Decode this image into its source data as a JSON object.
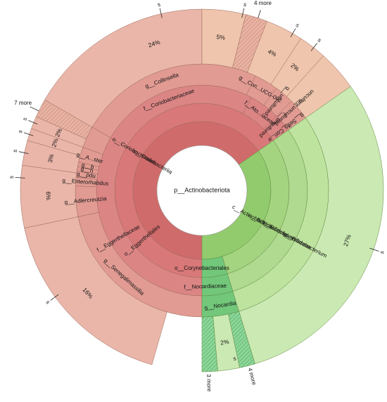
{
  "center_label": "p__Actinobacteriota",
  "colors": {
    "red_core": "#d06b6b",
    "red_class": "#d87878",
    "red_order": "#db8585",
    "red_family": "#e19b93",
    "red_genus": "#e6aa9e",
    "red_species": "#eab6a9",
    "peach_species": "#efc5ad",
    "green_class": "#92cb6e",
    "green_order": "#a4d47f",
    "green_family": "#b0da8f",
    "green_genus": "#bee39f",
    "green_species": "#cbe9b3",
    "nocardia_green": "#72c77a",
    "hatch_red": "#d8a090",
    "hatch_green": "#66bb77"
  },
  "class_labels": {
    "coriobacteriia": "c__Coriobacteriia",
    "actinobacteria": "c__Actinobacteria"
  },
  "order_labels": {
    "coriobacteriales": "o__Coriobacteriales",
    "eggerthellales": "o__Eggerthellales",
    "bifidobacteriales": "o__Bifidobacteriales",
    "corynebacteriales": "o__Corynebacteriales"
  },
  "family_labels": {
    "coriobacteriaceae": "f__Coriobacteriaceae",
    "atopobiaceae": "f__Ato...iaceae",
    "eggerthellaceae": "f__Eggerthellaceae",
    "bifidobacteriaceae": "f__Bifidobacteriaceae",
    "nocardiaceae": "f__Nocardiaceae",
    "uncultured": "f__uncultured",
    "cori_small": "f__Cori...e"
  },
  "genus_labels": {
    "collinsella": "g__Collinsella",
    "cori_ucg": "g__Cori...UCG-002",
    "uncultured_a": "g__uncultured",
    "uncultured_b": "g__uncultured",
    "senegalimassilia": "g__Senegalimassilia",
    "adlercreutzia": "g__Adlercreutzia",
    "enterorhabdus": "g__Enterorhabdus",
    "a_ster": "g__A...ster",
    "b_small": "g__b",
    "n_small": "g__n",
    "pdu_small": "g__pdu",
    "bifidobacterium": "g__Bifidobacterium",
    "nocardia": "g__Nocardia",
    "sellis": "g__Sellis"
  },
  "species_labels": {
    "s": "s",
    "pct_24": "24%",
    "pct_16": "16%",
    "pct_27": "27%",
    "pct_6": "6%",
    "pct_3": "3%",
    "pct_2": "2%",
    "pct_5": "5%",
    "pct_4": "4%",
    "more_7": "7 more",
    "more_4": "4 more",
    "more_3": "3 more",
    "unculture_tail": "unculture"
  }
}
